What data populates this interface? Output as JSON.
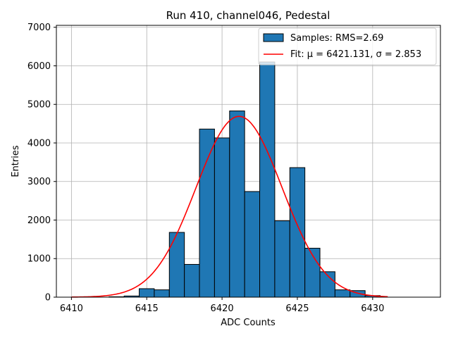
{
  "chart_data": {
    "type": "bar",
    "title": "Run 410, channel046, Pedestal",
    "xlabel": "ADC Counts",
    "ylabel": "Entries",
    "xlim": [
      6409.0,
      6434.5
    ],
    "ylim": [
      0,
      7050
    ],
    "xticks": [
      6410,
      6415,
      6420,
      6425,
      6430
    ],
    "yticks": [
      0,
      1000,
      2000,
      3000,
      4000,
      5000,
      6000,
      7000
    ],
    "grid": true,
    "legend_position": "top-right",
    "bar_color": "#1f77b4",
    "fit_color": "#ff0000",
    "bin_width": 1,
    "bins": [
      {
        "x": 6413,
        "value": 10
      },
      {
        "x": 6414,
        "value": 30
      },
      {
        "x": 6415,
        "value": 220
      },
      {
        "x": 6416,
        "value": 190
      },
      {
        "x": 6417,
        "value": 1680
      },
      {
        "x": 6418,
        "value": 850
      },
      {
        "x": 6419,
        "value": 4360
      },
      {
        "x": 6420,
        "value": 4130
      },
      {
        "x": 6421,
        "value": 4830
      },
      {
        "x": 6422,
        "value": 2740
      },
      {
        "x": 6423,
        "value": 6100
      },
      {
        "x": 6424,
        "value": 1980
      },
      {
        "x": 6425,
        "value": 3360
      },
      {
        "x": 6426,
        "value": 1270
      },
      {
        "x": 6427,
        "value": 660
      },
      {
        "x": 6428,
        "value": 190
      },
      {
        "x": 6429,
        "value": 170
      },
      {
        "x": 6430,
        "value": 40
      }
    ],
    "fit": {
      "mu": 6421.131,
      "sigma": 2.853,
      "amplitude": 4690,
      "x_range": [
        6410,
        6431
      ]
    },
    "series": [
      {
        "name": "Samples: RMS=2.69",
        "kind": "histogram"
      },
      {
        "name": "Fit: μ = 6421.131, σ = 2.853",
        "kind": "line"
      }
    ]
  }
}
